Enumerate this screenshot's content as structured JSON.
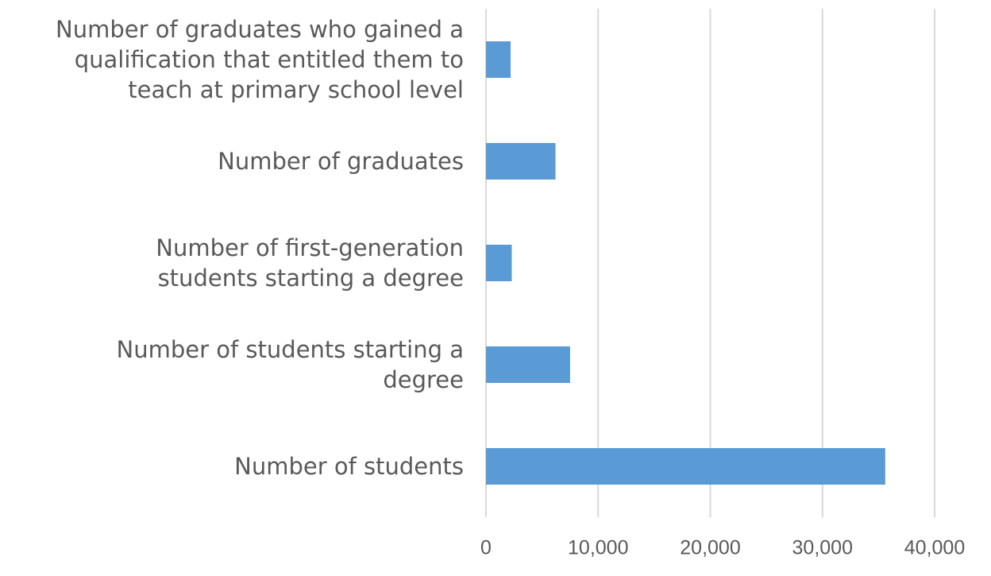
{
  "chart_data": {
    "type": "bar",
    "orientation": "horizontal",
    "categories": [
      "Number of graduates who gained a qualification that entitled them to teach at primary school level",
      "Number of graduates",
      "Number of first-generation students starting a degree",
      "Number of students starting a degree",
      "Number of students"
    ],
    "values": [
      2200,
      6200,
      2300,
      7500,
      35600
    ],
    "color": "#5b9bd5",
    "xlim": [
      0,
      40000
    ],
    "xticks": [
      0,
      {
        "value": 10000,
        "label": "10,000"
      },
      {
        "value": 20000,
        "label": "20,000"
      },
      {
        "value": 30000,
        "label": "30,000"
      },
      {
        "value": 40000,
        "label": "40,000"
      }
    ],
    "grid": true
  }
}
